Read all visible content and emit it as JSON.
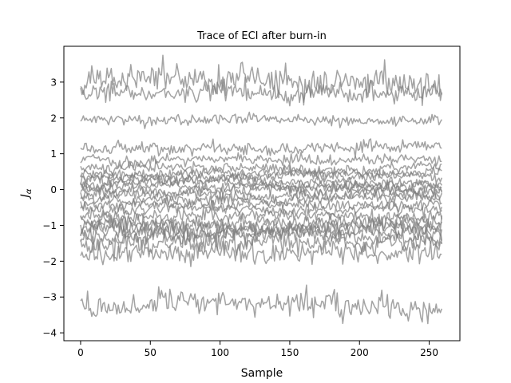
{
  "chart_data": {
    "type": "line",
    "title": "Trace of ECI after burn-in",
    "xlabel": "Sample",
    "ylabel": "J",
    "ylabel_sub": "α",
    "xlim": [
      -12,
      272
    ],
    "ylim": [
      -4.22,
      4.0
    ],
    "xticks": [
      0,
      50,
      100,
      150,
      200,
      250
    ],
    "xtick_labels": [
      "0",
      "50",
      "100",
      "150",
      "200",
      "250"
    ],
    "yticks": [
      3,
      2,
      1,
      0,
      -1,
      -2,
      -3,
      -4
    ],
    "ytick_labels": [
      "3",
      "2",
      "1",
      "0",
      "−1",
      "−2",
      "−3",
      "−4"
    ],
    "grid": false,
    "legend": "none",
    "color": "#808080",
    "n_samples": 260,
    "series_means": [
      3.05,
      2.75,
      1.95,
      1.15,
      0.85,
      0.6,
      0.45,
      0.35,
      0.25,
      0.15,
      0.05,
      -0.05,
      -0.15,
      -0.25,
      -0.4,
      -0.55,
      -0.75,
      -0.9,
      -1.0,
      -1.1,
      -1.2,
      -1.35,
      -1.55,
      -1.75,
      -3.3
    ],
    "series_spread": [
      0.3,
      0.2,
      0.1,
      0.12,
      0.1,
      0.1,
      0.1,
      0.1,
      0.1,
      0.1,
      0.1,
      0.1,
      0.1,
      0.1,
      0.1,
      0.1,
      0.12,
      0.15,
      0.15,
      0.15,
      0.15,
      0.15,
      0.2,
      0.2,
      0.22
    ]
  }
}
